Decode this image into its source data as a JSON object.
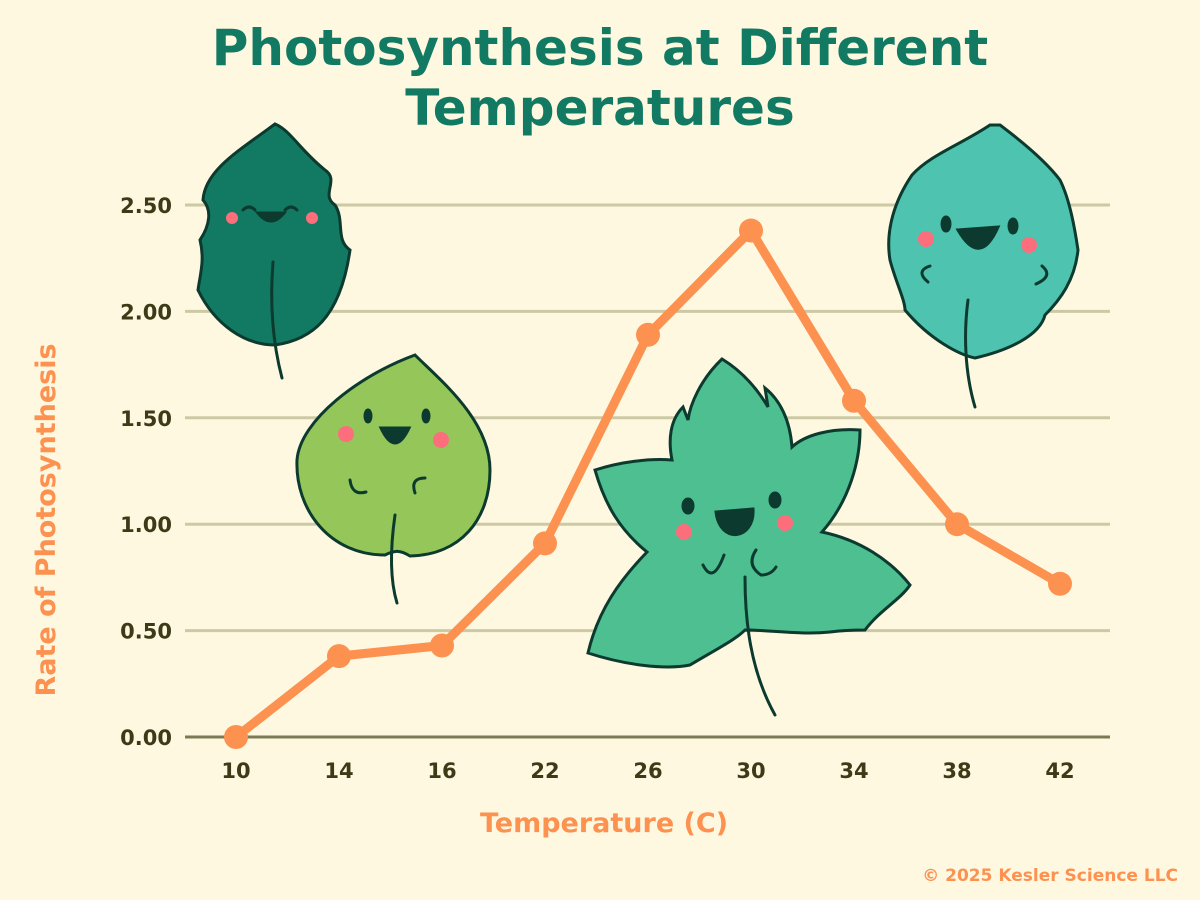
{
  "chart_data": {
    "type": "line",
    "title": "Photosynthesis at Different Temperatures",
    "title_lines": [
      "Photosynthesis at Different",
      "Temperatures"
    ],
    "xlabel": "Temperature (C)",
    "ylabel": "Rate of Photosynthesis",
    "categories": [
      "10",
      "14",
      "16",
      "22",
      "26",
      "30",
      "34",
      "38",
      "42"
    ],
    "values": [
      0.0,
      0.38,
      0.43,
      0.91,
      1.89,
      2.38,
      1.58,
      1.0,
      0.72
    ],
    "yticks": [
      "0.00",
      "0.50",
      "1.00",
      "1.50",
      "2.00",
      "2.50"
    ],
    "ylim": [
      0,
      2.5
    ],
    "grid": true,
    "line_color": "#fc9150",
    "grid_color": "#cdc9a5"
  },
  "decorations": [
    "smiling-leaf-icon",
    "smiling-heart-leaf-icon",
    "smiling-maple-leaf-icon",
    "smiling-serrated-leaf-icon"
  ],
  "credit": "© 2025 Kesler Science LLC"
}
